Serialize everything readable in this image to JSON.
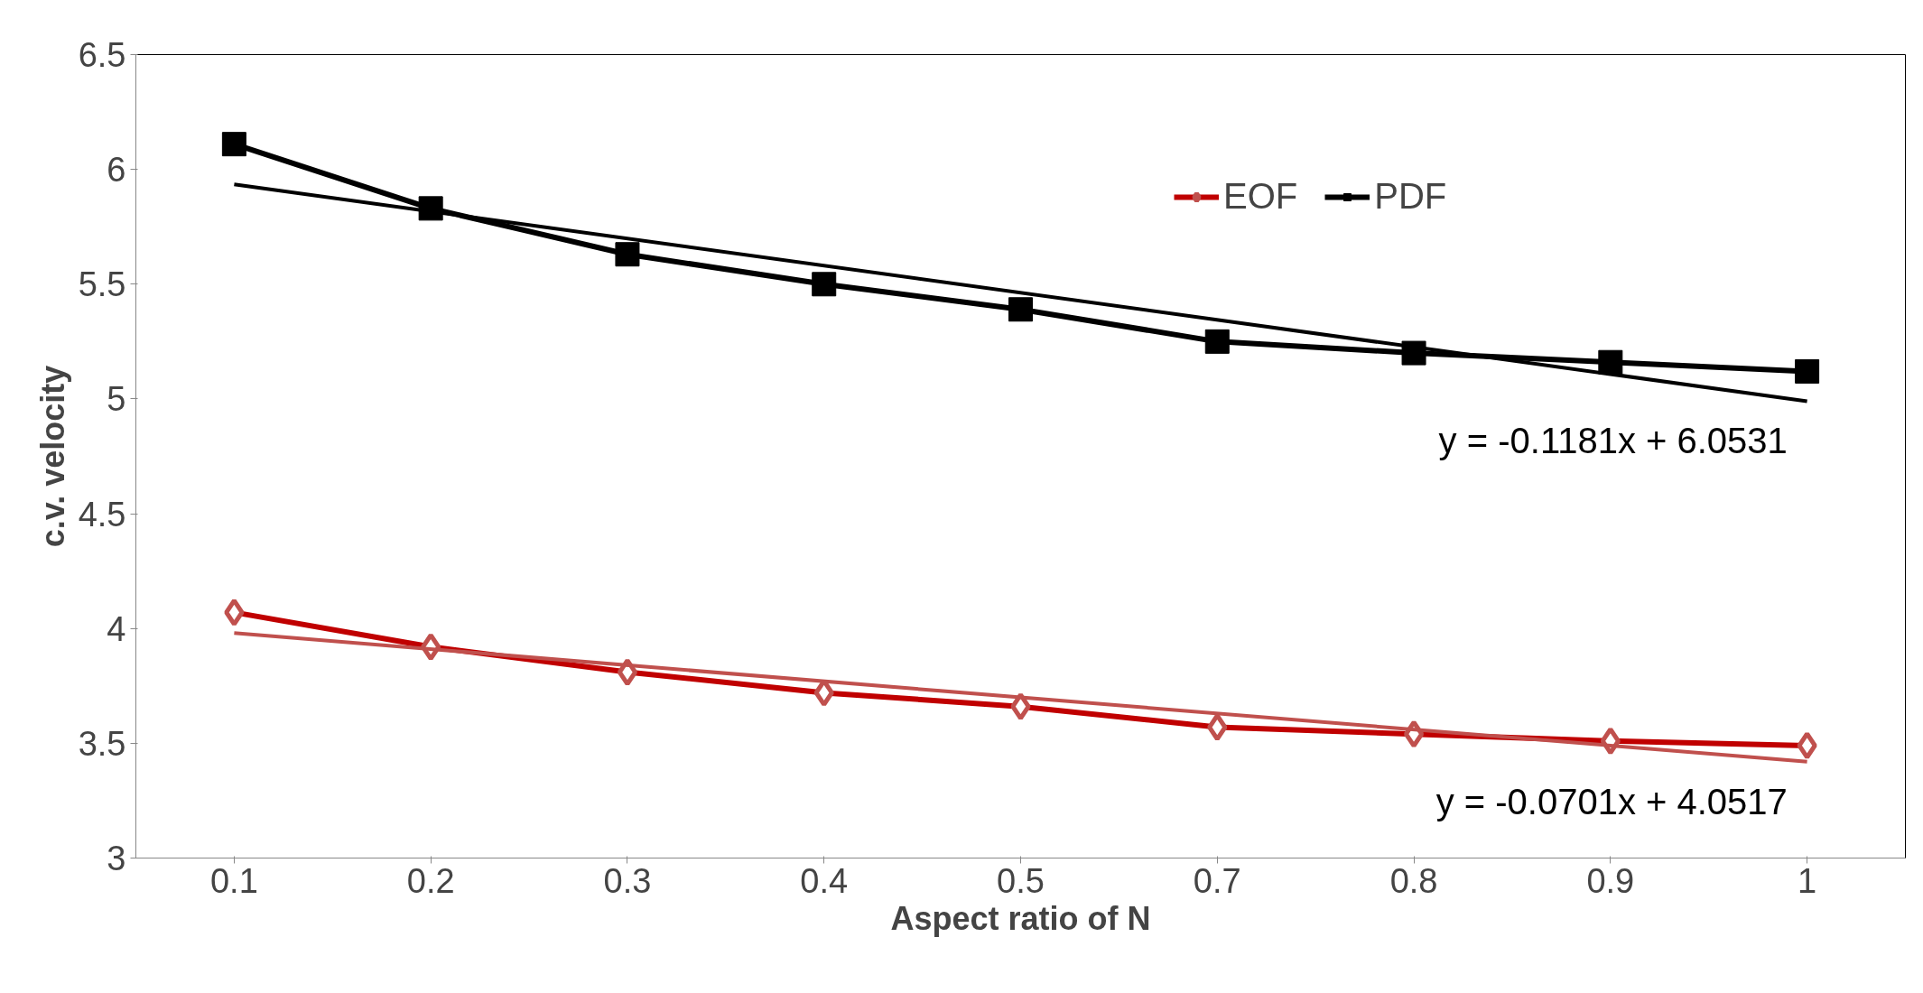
{
  "chart_data": {
    "type": "line",
    "xlabel": "Aspect ratio of N",
    "ylabel": "c.v. velocity",
    "categories": [
      "0.1",
      "0.2",
      "0.3",
      "0.4",
      "0.5",
      "0.7",
      "0.8",
      "0.9",
      "1"
    ],
    "ylim": [
      3,
      6.5
    ],
    "yticks": [
      3,
      3.5,
      4,
      4.5,
      5,
      5.5,
      6,
      6.5
    ],
    "grid": false,
    "legend": "top",
    "series": [
      {
        "name": "EOF",
        "color": "#c00000",
        "marker": "diamond",
        "values": [
          4.07,
          3.92,
          3.81,
          3.72,
          3.66,
          3.57,
          3.54,
          3.51,
          3.49
        ]
      },
      {
        "name": "PDF",
        "color": "#000000",
        "marker": "square",
        "values": [
          6.11,
          5.83,
          5.63,
          5.5,
          5.39,
          5.25,
          5.2,
          5.16,
          5.12
        ]
      },
      {
        "type": "line",
        "color": "#c0504d",
        "x": [
          "0.1",
          "1"
        ],
        "values": [
          3.98,
          3.42
        ]
      },
      {
        "type": "line",
        "color": "#000000",
        "x": [
          "0.1",
          "1"
        ],
        "values": [
          5.935,
          4.99
        ]
      }
    ],
    "annotations": [
      "y = -0.0701x + 4.0517",
      "y = -0.1181x + 6.0531"
    ]
  }
}
